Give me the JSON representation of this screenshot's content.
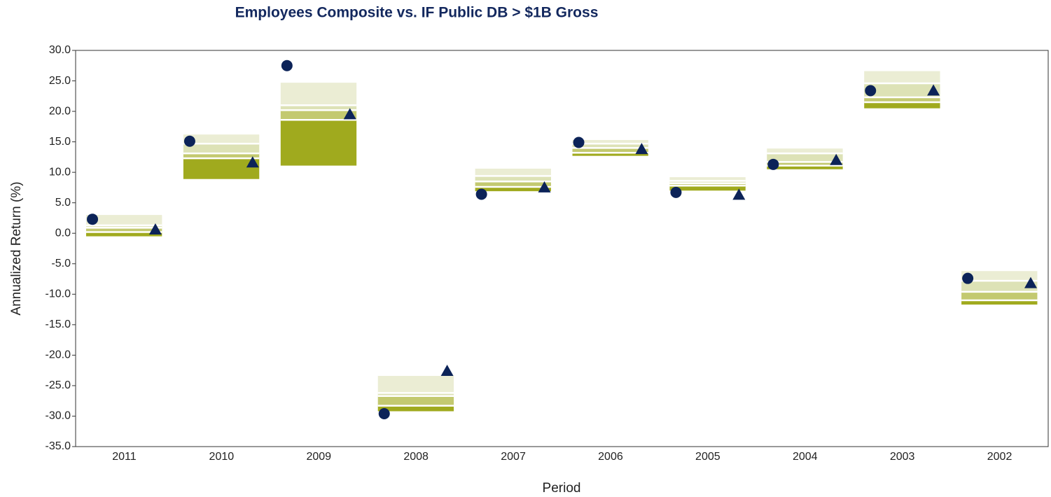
{
  "chart_data": {
    "type": "percentile_box",
    "title": "Employees Composite vs. IF Public DB > $1B Gross",
    "xlabel": "Period",
    "ylabel": "Annualized Return (%)",
    "categories": [
      "2011",
      "2010",
      "2009",
      "2008",
      "2007",
      "2006",
      "2005",
      "2004",
      "2003",
      "2002"
    ],
    "bands": {
      "p95": [
        3.0,
        16.2,
        24.7,
        -23.4,
        10.6,
        15.3,
        9.2,
        13.9,
        26.6,
        -6.2
      ],
      "p75": [
        1.3,
        14.7,
        21.0,
        -26.2,
        9.4,
        14.7,
        8.6,
        13.1,
        24.6,
        -7.8
      ],
      "p50": [
        0.9,
        13.1,
        20.2,
        -26.7,
        8.5,
        14.0,
        8.2,
        11.7,
        22.3,
        -9.6
      ],
      "p25": [
        0.2,
        12.3,
        18.6,
        -28.3,
        7.6,
        13.2,
        7.8,
        11.1,
        21.5,
        -11.0
      ],
      "p5": [
        -0.5,
        8.9,
        11.1,
        -29.2,
        6.9,
        12.7,
        7.0,
        10.5,
        20.5,
        -11.7
      ]
    },
    "band_colors": [
      "#ebedd4",
      "#dde2b6",
      "#c3c970",
      "#a0aa1e"
    ],
    "markers": [
      {
        "shape": "circle",
        "color": "#0c2358",
        "values": [
          2.3,
          15.1,
          27.5,
          -29.6,
          6.4,
          14.9,
          6.7,
          11.3,
          23.4,
          -7.4
        ]
      },
      {
        "shape": "triangle",
        "color": "#0c2358",
        "values": [
          0.6,
          11.6,
          19.5,
          -22.6,
          7.5,
          13.8,
          6.3,
          12.0,
          23.4,
          -8.2
        ]
      }
    ],
    "ylim": [
      -35,
      30
    ],
    "yticks": [
      {
        "value": 30,
        "label": "30.0"
      },
      {
        "value": 25,
        "label": "25.0"
      },
      {
        "value": 20,
        "label": "20.0"
      },
      {
        "value": 15,
        "label": "15.0"
      },
      {
        "value": 10,
        "label": "10.0"
      },
      {
        "value": 5,
        "label": "5.0"
      },
      {
        "value": 0,
        "label": "0.0"
      },
      {
        "value": -5,
        "label": "-5.0"
      },
      {
        "value": -10,
        "label": "-10.0"
      },
      {
        "value": -15,
        "label": "-15.0"
      },
      {
        "value": -20,
        "label": "-20.0"
      },
      {
        "value": -25,
        "label": "-25.0"
      },
      {
        "value": -30,
        "label": "-30.0"
      },
      {
        "value": -35,
        "label": "-35.0"
      }
    ]
  }
}
